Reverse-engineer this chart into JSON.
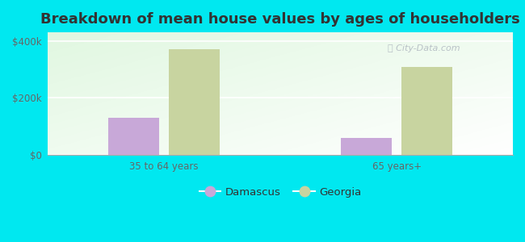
{
  "title": "Breakdown of mean house values by ages of householders",
  "categories": [
    "35 to 64 years",
    "65 years+"
  ],
  "damascus_values": [
    130000,
    60000
  ],
  "georgia_values": [
    370000,
    310000
  ],
  "damascus_color": "#c8a8d8",
  "georgia_color": "#c8d4a0",
  "background_color": "#00e8f0",
  "yticks": [
    0,
    200000,
    400000
  ],
  "ylabels": [
    "$0",
    "$200k",
    "$400k"
  ],
  "ylim": [
    0,
    430000
  ],
  "legend_labels": [
    "Damascus",
    "Georgia"
  ],
  "title_fontsize": 13,
  "tick_fontsize": 8.5,
  "legend_fontsize": 9.5
}
